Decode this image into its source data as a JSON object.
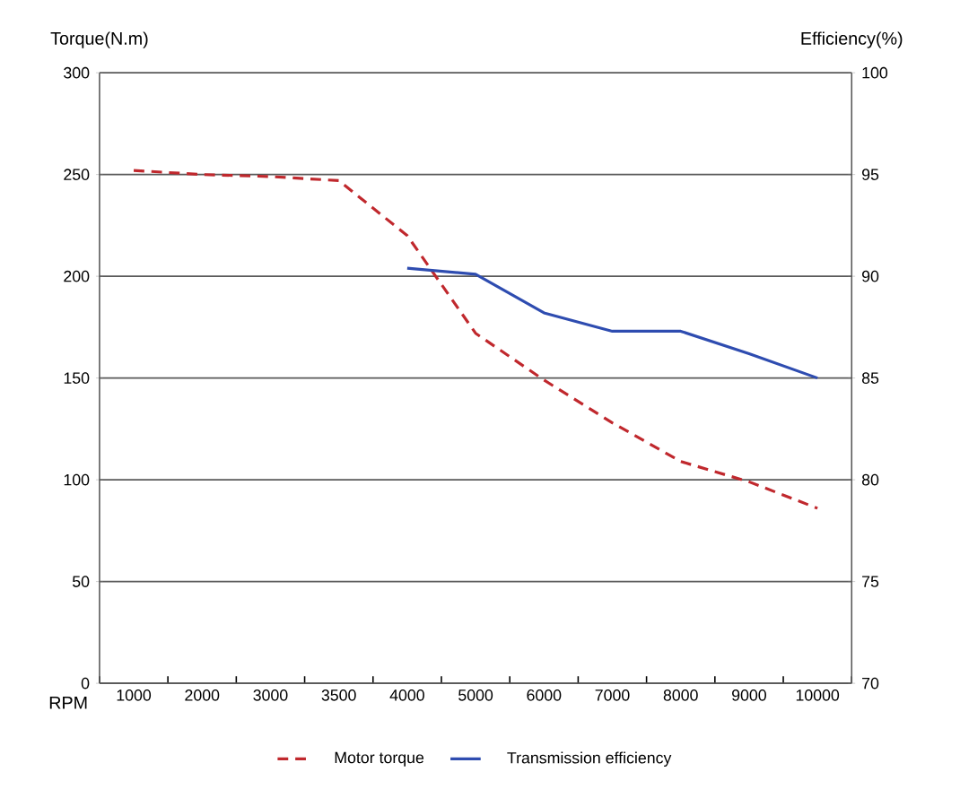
{
  "chart_data": {
    "type": "line",
    "xlabel": "RPM",
    "ylabel": "Torque(N.m)",
    "y2label": "Efficiency(%)",
    "categories": [
      "1000",
      "2000",
      "3000",
      "3500",
      "4000",
      "5000",
      "6000",
      "7000",
      "8000",
      "9000",
      "10000"
    ],
    "series": [
      {
        "name": "Motor torque",
        "color": "#c0282d",
        "line_style": "dashed",
        "values": [
          252,
          250,
          249,
          247,
          220,
          172,
          149,
          128,
          109,
          99,
          86
        ]
      },
      {
        "name": "Transmission efficiency",
        "color": "#2e4cb0",
        "line_style": "solid",
        "axis": "y2",
        "values": [
          null,
          null,
          null,
          null,
          90.4,
          90.1,
          88.2,
          87.3,
          87.3,
          86.2,
          85.0
        ]
      }
    ],
    "ylim": [
      0,
      300
    ],
    "yticks": [
      0,
      50,
      100,
      150,
      200,
      250,
      300
    ],
    "y2lim": [
      70,
      100
    ],
    "y2ticks": [
      70,
      75,
      80,
      85,
      90,
      95,
      100
    ],
    "grid": "y",
    "legend": "bottom"
  }
}
